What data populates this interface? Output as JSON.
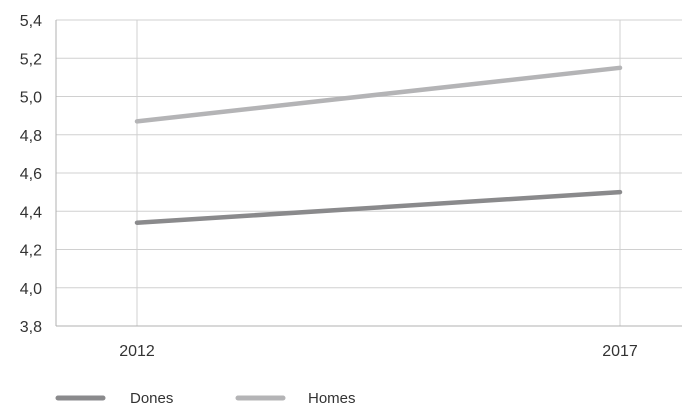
{
  "chart_data": {
    "type": "line",
    "x": [
      "2012",
      "2017"
    ],
    "ylim": [
      3.8,
      5.4
    ],
    "yticks": [
      "3,8",
      "4,0",
      "4,2",
      "4,4",
      "4,6",
      "4,8",
      "5,0",
      "5,2",
      "5,4"
    ],
    "ytick_values": [
      3.8,
      4.0,
      4.2,
      4.4,
      4.6,
      4.8,
      5.0,
      5.2,
      5.4
    ],
    "grid": true,
    "legend_position": "bottom-left",
    "series": [
      {
        "name": "Dones",
        "values": [
          4.34,
          4.5
        ],
        "color": "#8a8a8c"
      },
      {
        "name": "Homes",
        "values": [
          4.87,
          5.15
        ],
        "color": "#b4b4b6"
      }
    ],
    "gridline_color": "#d0d0d0",
    "axis_color": "#b0b0b0",
    "text_color": "#333333"
  }
}
